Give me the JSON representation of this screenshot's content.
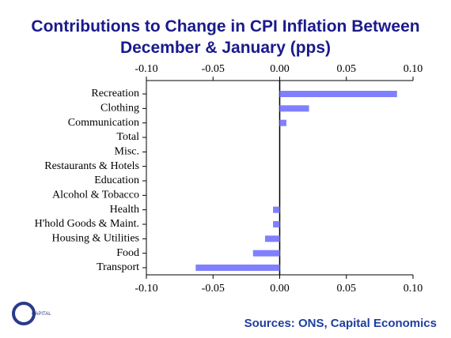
{
  "chart_data": {
    "type": "hbar",
    "title": [
      "Contributions to Change in CPI Inflation Between",
      "December & January (pps)"
    ],
    "categories": [
      "Recreation",
      "Clothing",
      "Communication",
      "Total",
      "Misc.",
      "Restaurants & Hotels",
      "Education",
      "Alcohol & Tobacco",
      "Health",
      "H'hold Goods & Maint.",
      "Housing & Utilities",
      "Food",
      "Transport"
    ],
    "values": [
      0.088,
      0.022,
      0.005,
      0,
      0,
      0,
      0,
      0,
      -0.005,
      -0.005,
      -0.011,
      -0.02,
      -0.063
    ],
    "color": "#8080ff",
    "xlim": [
      -0.1,
      0.1
    ],
    "xticks": [
      {
        "value": -0.1,
        "label": "-0.10"
      },
      -0.05,
      {
        "value": 0,
        "label": "0.00"
      },
      0.05,
      {
        "value": 0.1,
        "label": "0.10"
      }
    ],
    "source": "Sources: ONS, Capital Economics",
    "logo_text": "CAPITAL"
  }
}
